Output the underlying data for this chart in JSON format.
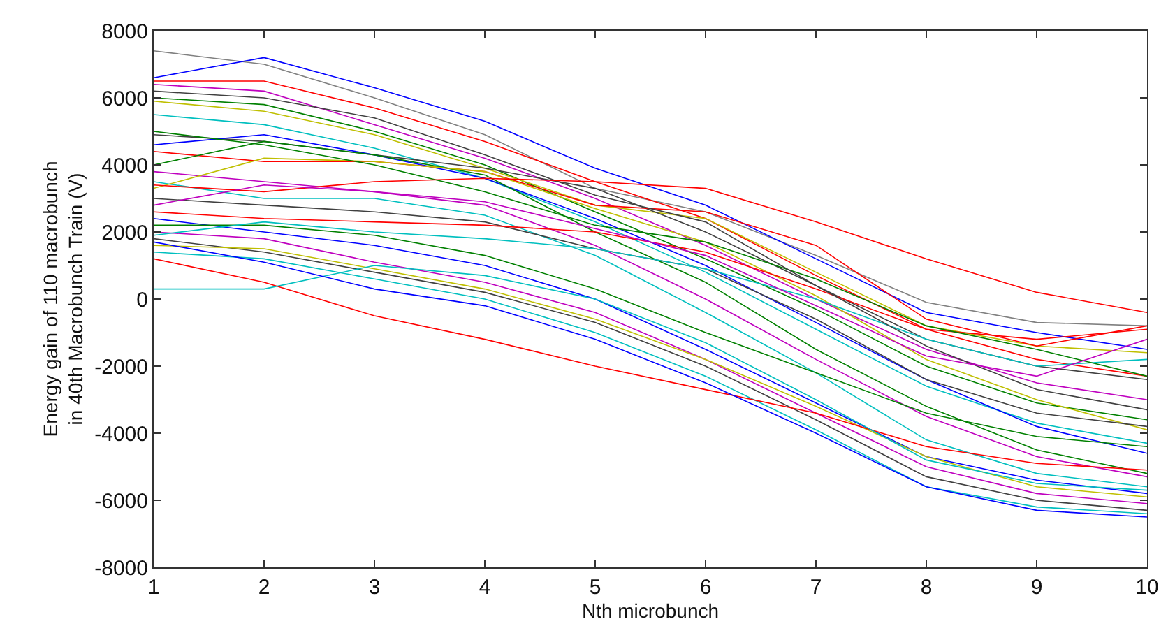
{
  "chart_data": {
    "type": "line",
    "xlabel": "Nth microbunch",
    "ylabel": "Energy gain of 110 macrobunch\nin 40th Macrobunch Train (V)",
    "x": [
      1,
      2,
      3,
      4,
      5,
      6,
      7,
      8,
      9,
      10
    ],
    "xlim": [
      1,
      10
    ],
    "xticks": [
      1,
      2,
      3,
      4,
      5,
      6,
      7,
      8,
      9,
      10
    ],
    "ylim": [
      -8000,
      8000
    ],
    "yticks": [
      -8000,
      -6000,
      -4000,
      -2000,
      0,
      2000,
      4000,
      6000,
      8000
    ],
    "legend": false,
    "marker": "none",
    "line_style": "solid",
    "series": [
      {
        "color": "#808080",
        "values": [
          7400,
          7000,
          6000,
          4900,
          3300,
          2600,
          1300,
          -100,
          -700,
          -800
        ]
      },
      {
        "color": "#0000ff",
        "values": [
          6600,
          7200,
          6300,
          5300,
          3900,
          2800,
          1200,
          -400,
          -1000,
          -1500
        ]
      },
      {
        "color": "#ff0000",
        "values": [
          6500,
          6500,
          5700,
          4700,
          3500,
          2400,
          700,
          -900,
          -1800,
          -2300
        ]
      },
      {
        "color": "#bf00bf",
        "values": [
          6400,
          6200,
          5200,
          4200,
          3000,
          1600,
          0,
          -1500,
          -2500,
          -3000
        ]
      },
      {
        "color": "#008000",
        "values": [
          6000,
          5800,
          5000,
          4000,
          2600,
          1200,
          -300,
          -2000,
          -3100,
          -3600
        ]
      },
      {
        "color": "#bfbf00",
        "values": [
          5900,
          5600,
          4900,
          3900,
          2800,
          2400,
          800,
          -800,
          -1400,
          -1600
        ]
      },
      {
        "color": "#00bfbf",
        "values": [
          5500,
          5200,
          4500,
          3600,
          2300,
          800,
          -900,
          -2600,
          -3700,
          -4300
        ]
      },
      {
        "color": "#404040",
        "values": [
          4900,
          4700,
          4300,
          3900,
          3300,
          2000,
          400,
          -1200,
          -2000,
          -2400
        ]
      },
      {
        "color": "#0000ff",
        "values": [
          4600,
          4900,
          4300,
          3600,
          2400,
          1000,
          -700,
          -2400,
          -3800,
          -4600
        ]
      },
      {
        "color": "#ff0000",
        "values": [
          4400,
          4100,
          4100,
          3800,
          2800,
          2600,
          1600,
          -600,
          -1400,
          -800
        ]
      },
      {
        "color": "#008000",
        "values": [
          4000,
          4700,
          4300,
          3700,
          2000,
          500,
          -1500,
          -3200,
          -4500,
          -5200
        ]
      },
      {
        "color": "#bf00bf",
        "values": [
          3800,
          3500,
          3200,
          2800,
          1600,
          0,
          -1800,
          -3500,
          -4700,
          -5300
        ]
      },
      {
        "color": "#00bfbf",
        "values": [
          3500,
          3000,
          3000,
          2500,
          1300,
          -400,
          -2200,
          -4200,
          -5200,
          -5600
        ]
      },
      {
        "color": "#bfbf00",
        "values": [
          3300,
          4200,
          4100,
          3800,
          2700,
          1700,
          100,
          -1800,
          -3000,
          -3900
        ]
      },
      {
        "color": "#404040",
        "values": [
          3000,
          2800,
          2600,
          2300,
          1500,
          900,
          -600,
          -2400,
          -3400,
          -3800
        ]
      },
      {
        "color": "#ff0000",
        "values": [
          2600,
          2400,
          2300,
          2200,
          2000,
          1400,
          300,
          -900,
          -1200,
          -900
        ]
      },
      {
        "color": "#0000ff",
        "values": [
          2400,
          2000,
          1600,
          1000,
          0,
          -1500,
          -3100,
          -4700,
          -5400,
          -5800
        ]
      },
      {
        "color": "#008000",
        "values": [
          2200,
          2200,
          1900,
          1300,
          300,
          -1000,
          -2200,
          -3400,
          -4100,
          -4400
        ]
      },
      {
        "color": "#bf00bf",
        "values": [
          2000,
          1800,
          1100,
          500,
          -400,
          -1800,
          -3400,
          -5000,
          -5800,
          -6100
        ]
      },
      {
        "color": "#00bfbf",
        "values": [
          1900,
          2300,
          2000,
          1800,
          1500,
          900,
          0,
          -1200,
          -2000,
          -1800
        ]
      },
      {
        "color": "#404040",
        "values": [
          1800,
          1400,
          800,
          200,
          -700,
          -2000,
          -3600,
          -5300,
          -6000,
          -6300
        ]
      },
      {
        "color": "#bfbf00",
        "values": [
          1600,
          1500,
          900,
          300,
          -600,
          -1800,
          -3200,
          -4700,
          -5600,
          -5900
        ]
      },
      {
        "color": "#00bfbf",
        "values": [
          1400,
          1200,
          600,
          0,
          -1000,
          -2300,
          -3900,
          -5600,
          -6200,
          -6400
        ]
      },
      {
        "color": "#ff0000",
        "values": [
          1200,
          500,
          -500,
          -1200,
          -2000,
          -2700,
          -3400,
          -4400,
          -4900,
          -5100
        ]
      },
      {
        "color": "#00bfbf",
        "values": [
          300,
          300,
          1000,
          700,
          0,
          -1300,
          -3000,
          -4800,
          -5500,
          -5700
        ]
      },
      {
        "color": "#0000ff",
        "values": [
          1700,
          1100,
          300,
          -200,
          -1200,
          -2500,
          -4000,
          -5600,
          -6300,
          -6500
        ]
      },
      {
        "color": "#008000",
        "values": [
          5000,
          4600,
          4000,
          3200,
          2200,
          1700,
          600,
          -800,
          -1500,
          -2300
        ]
      },
      {
        "color": "#404040",
        "values": [
          6200,
          6000,
          5400,
          4300,
          3100,
          2300,
          400,
          -1400,
          -2700,
          -3300
        ]
      },
      {
        "color": "#ff0000",
        "values": [
          3400,
          3200,
          3500,
          3600,
          3500,
          3300,
          2300,
          1200,
          200,
          -400
        ]
      },
      {
        "color": "#bf00bf",
        "values": [
          2800,
          3400,
          3200,
          2900,
          2100,
          1300,
          -200,
          -1700,
          -2300,
          -1200
        ]
      }
    ]
  }
}
